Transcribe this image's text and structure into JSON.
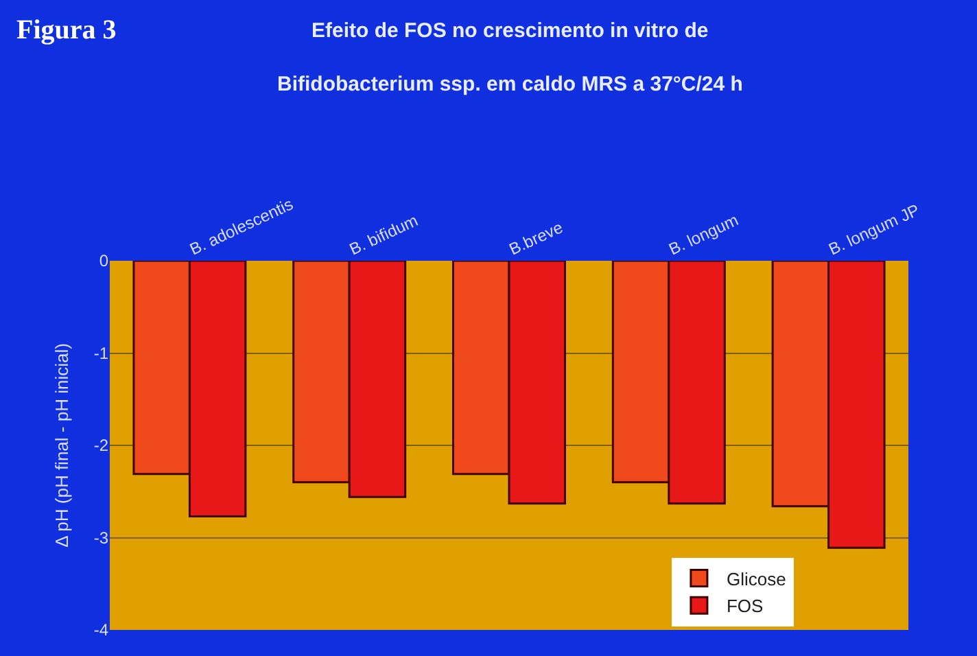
{
  "chart_data": {
    "type": "bar",
    "title": "Efeito de FOS no crescimento in vitro de",
    "subtitle": "Bifidobacterium ssp. em caldo MRS a 37°C/24 h",
    "annotations": [
      "Figura 3"
    ],
    "ylabel": "Δ pH (pH final - pH inicial)",
    "categories": [
      "B. adolescentis",
      "B. bifidum",
      "B.breve",
      "B. longum",
      "B. longum JP"
    ],
    "series": [
      {
        "name": "Glicose",
        "color": "#f04a1c",
        "values": [
          -2.31,
          -2.4,
          -2.31,
          -2.4,
          -2.66
        ]
      },
      {
        "name": "FOS",
        "color": "#e81818",
        "values": [
          -2.77,
          -2.56,
          -2.63,
          -2.63,
          -3.11
        ]
      }
    ],
    "ylim": [
      -4,
      0
    ],
    "yticks": [
      0,
      -1,
      -2,
      -3,
      -4
    ],
    "grid": "y",
    "legend": "bottom right"
  }
}
